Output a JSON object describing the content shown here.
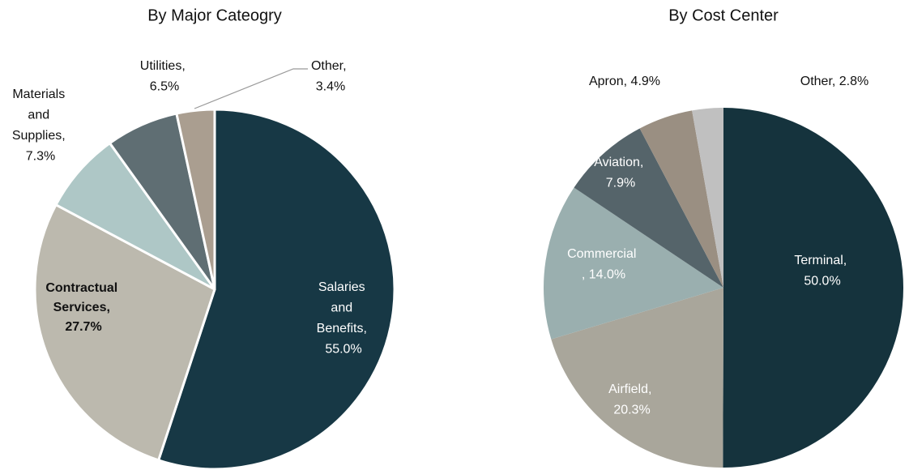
{
  "chart_data": [
    {
      "type": "pie",
      "title": "By Major Cateogry",
      "values": [
        55.0,
        27.7,
        7.3,
        6.5,
        3.4
      ],
      "value_labels": [
        "Salaries and Benefits, 55.0%",
        "Contractual Services, 27.7%",
        "Materials and Supplies, 7.3%",
        "Utilities, 6.5%",
        "Other, 3.4%"
      ],
      "colors": [
        "#173845",
        "#bcb9ae",
        "#aec7c6",
        "#5f6e73",
        "#aa9e90"
      ]
    },
    {
      "type": "pie",
      "title": "By Cost Center",
      "values": [
        50.0,
        20.3,
        14.0,
        7.9,
        4.9,
        2.8
      ],
      "value_labels": [
        "Terminal, 50.0%",
        "Airfield, 20.3%",
        "Commercial , 14.0%",
        "Aviation, 7.9%",
        "Apron, 4.9%",
        "Other, 2.8%"
      ],
      "colors": [
        "#15333d",
        "#a9a69b",
        "#9aafaf",
        "#55646a",
        "#9a8f82",
        "#c0c0c0"
      ]
    }
  ]
}
